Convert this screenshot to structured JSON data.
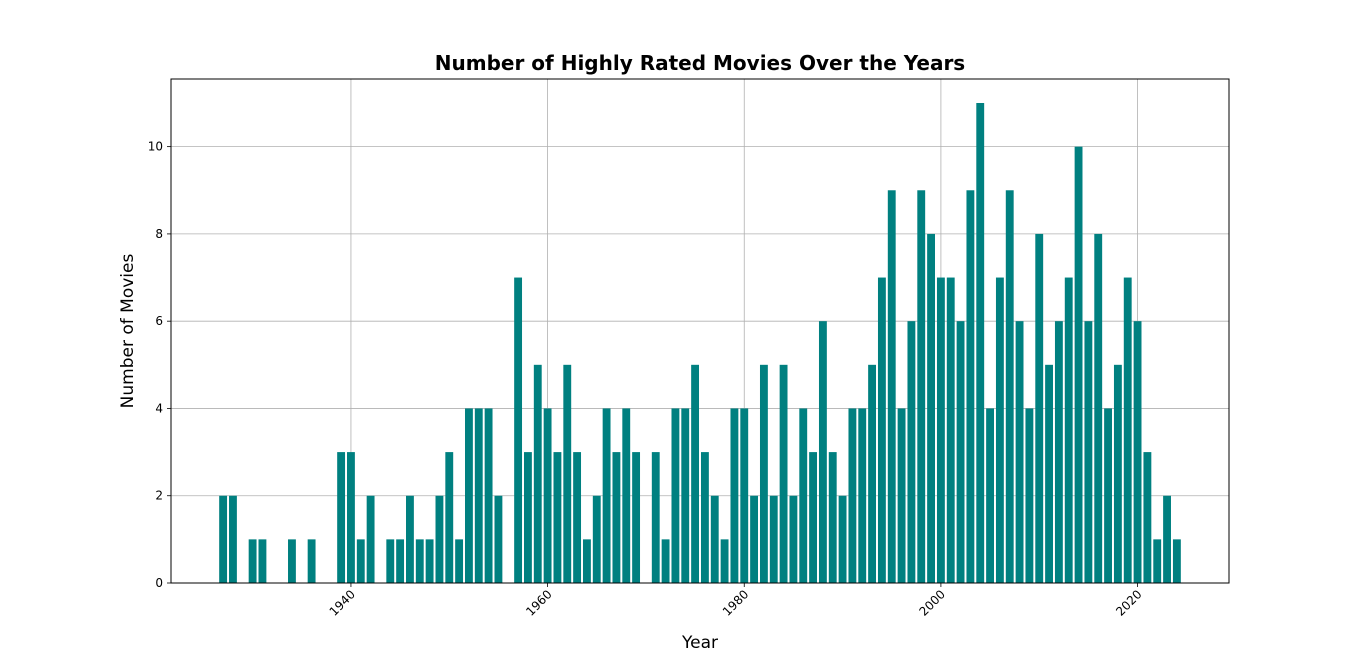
{
  "chart_data": {
    "type": "bar",
    "title": "Number of Highly Rated Movies Over the Years",
    "x_label": "Year",
    "y_label": "Number of Movies",
    "x": [
      1927,
      1928,
      1930,
      1931,
      1934,
      1936,
      1939,
      1940,
      1941,
      1942,
      1944,
      1945,
      1946,
      1947,
      1948,
      1949,
      1950,
      1951,
      1952,
      1953,
      1954,
      1955,
      1957,
      1958,
      1959,
      1960,
      1961,
      1962,
      1963,
      1964,
      1965,
      1966,
      1967,
      1968,
      1969,
      1971,
      1972,
      1973,
      1974,
      1975,
      1976,
      1977,
      1978,
      1979,
      1980,
      1981,
      1982,
      1983,
      1984,
      1985,
      1986,
      1987,
      1988,
      1989,
      1990,
      1991,
      1992,
      1993,
      1994,
      1995,
      1996,
      1997,
      1998,
      1999,
      2000,
      2001,
      2002,
      2003,
      2004,
      2005,
      2006,
      2007,
      2008,
      2009,
      2010,
      2011,
      2012,
      2013,
      2014,
      2015,
      2016,
      2017,
      2018,
      2019,
      2020,
      2021,
      2022,
      2023,
      2024
    ],
    "values": [
      2,
      2,
      1,
      1,
      1,
      1,
      3,
      3,
      1,
      2,
      1,
      1,
      2,
      1,
      1,
      2,
      3,
      1,
      4,
      4,
      4,
      2,
      7,
      3,
      5,
      4,
      3,
      5,
      3,
      1,
      2,
      4,
      3,
      4,
      3,
      3,
      1,
      4,
      4,
      5,
      3,
      2,
      1,
      4,
      4,
      2,
      5,
      2,
      5,
      2,
      4,
      3,
      6,
      3,
      2,
      4,
      4,
      5,
      7,
      9,
      4,
      6,
      9,
      8,
      7,
      7,
      6,
      9,
      11,
      4,
      7,
      9,
      6,
      4,
      8,
      5,
      6,
      7,
      10,
      6,
      8,
      4,
      5,
      7,
      6,
      3,
      1,
      2,
      1
    ],
    "color": "#008080",
    "xlim": [
      1921.7,
      2029.3
    ],
    "xticks": [
      1940,
      1960,
      1980,
      2000,
      2020
    ],
    "ylim": [
      0,
      11.55
    ],
    "yticks": [
      0,
      2,
      4,
      6,
      8,
      10
    ],
    "grid": true
  }
}
